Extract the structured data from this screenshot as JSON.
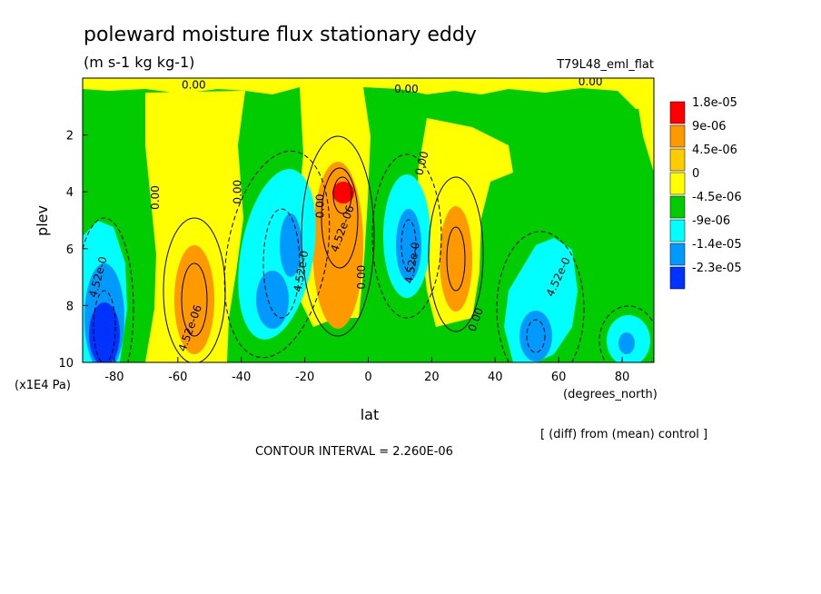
{
  "chart_data": {
    "type": "heatmap",
    "title": "poleward moisture flux stationary eddy",
    "units": "(m s-1 kg kg-1)",
    "experiment": "T79L48_eml_flat",
    "xlabel": "lat",
    "xunits": "(degrees_north)",
    "ylabel": "plev",
    "yunits": "(x1E4 Pa)",
    "xlim": [
      -90,
      90
    ],
    "ylim": [
      0,
      10
    ],
    "y_inverted": true,
    "x_ticks": [
      "-80",
      "-60",
      "-40",
      "-20",
      "0",
      "20",
      "40",
      "60",
      "80"
    ],
    "y_ticks": [
      "2",
      "4",
      "6",
      "8",
      "10"
    ],
    "contour_interval_text": "CONTOUR INTERVAL = 2.260E-06",
    "diff_text": "[ (diff) from (mean) control ]",
    "legend": [
      {
        "label": "1.8e-05",
        "color": "#ff0000"
      },
      {
        "label": "9e-06",
        "color": "#ff9900"
      },
      {
        "label": "4.5e-06",
        "color": "#ffcc00"
      },
      {
        "label": "0",
        "color": "#ffff00"
      },
      {
        "label": "-4.5e-06",
        "color": "#00cc00"
      },
      {
        "label": "-9e-06",
        "color": "#00ffff"
      },
      {
        "label": "-1.4e-05",
        "color": "#0099ff"
      },
      {
        "label": "-2.3e-05",
        "color": "#0033ff"
      }
    ],
    "contour_labels": [
      {
        "text": "0.00",
        "lat": -55,
        "plev": 0.25,
        "angle": 0
      },
      {
        "text": "0.00",
        "lat": 12,
        "plev": 0.4,
        "angle": 0
      },
      {
        "text": "0.00",
        "lat": 70,
        "plev": 0.15,
        "angle": 0
      },
      {
        "text": "0.00",
        "lat": -67,
        "plev": 4.2,
        "angle": -90
      },
      {
        "text": "0.00",
        "lat": -41,
        "plev": 4.0,
        "angle": -90
      },
      {
        "text": "0.00",
        "lat": -15,
        "plev": 4.5,
        "angle": -90
      },
      {
        "text": "0.00",
        "lat": -2,
        "plev": 7.0,
        "angle": -90
      },
      {
        "text": "0.00",
        "lat": 17,
        "plev": 3.0,
        "angle": -75
      },
      {
        "text": "0.00",
        "lat": 34,
        "plev": 8.5,
        "angle": -70
      },
      {
        "text": "4.52e-0",
        "lat": -85,
        "plev": 7.0,
        "angle": -75
      },
      {
        "text": "4.52e-06",
        "lat": -56,
        "plev": 8.8,
        "angle": -70
      },
      {
        "text": "4.52e-0",
        "lat": -21,
        "plev": 6.8,
        "angle": -80
      },
      {
        "text": "4.52e-06",
        "lat": -8,
        "plev": 5.3,
        "angle": -70
      },
      {
        "text": "4.52e-0",
        "lat": 14,
        "plev": 6.5,
        "angle": -80
      },
      {
        "text": "4.52e-0",
        "lat": 60,
        "plev": 7.0,
        "angle": -65
      }
    ]
  }
}
